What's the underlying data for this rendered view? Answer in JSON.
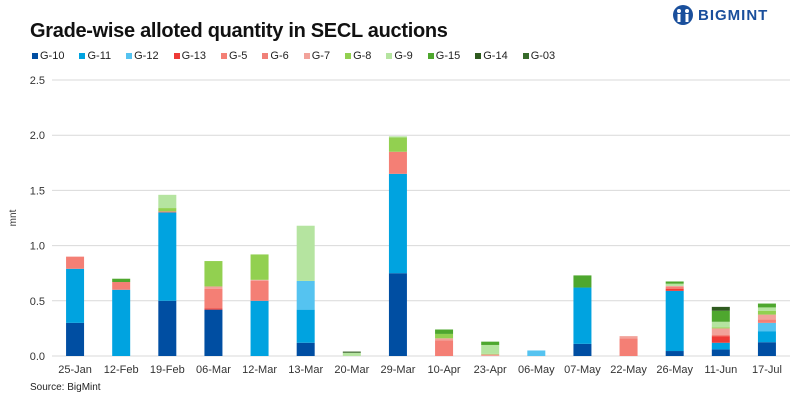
{
  "header": {
    "title": "Grade-wise alloted quantity in SECL auctions",
    "logo_text": "BIGMINT"
  },
  "footer": {
    "source": "Source: BigMint"
  },
  "chart_data": {
    "type": "bar",
    "stacked": true,
    "title": "Grade-wise alloted quantity in SECL auctions",
    "xlabel": "",
    "ylabel": "mnt",
    "ylim": [
      0,
      2.5
    ],
    "yticks": [
      "0.0",
      "0.5",
      "1.0",
      "1.5",
      "2.0",
      "2.5"
    ],
    "grid": true,
    "legend_position": "top",
    "categories": [
      "25-Jan",
      "12-Feb",
      "19-Feb",
      "06-Mar",
      "12-Mar",
      "13-Mar",
      "20-Mar",
      "29-Mar",
      "10-Apr",
      "23-Apr",
      "06-May",
      "07-May",
      "22-May",
      "26-May",
      "11-Jun",
      "17-Jul"
    ],
    "series": [
      {
        "name": "G-10",
        "color": "#004EA2",
        "values": [
          0.3,
          0,
          0.5,
          0.42,
          0,
          0.12,
          0,
          0.75,
          0,
          0,
          0,
          0.11,
          0,
          0.045,
          0.06,
          0.125
        ]
      },
      {
        "name": "G-11",
        "color": "#00A3E0",
        "values": [
          0.49,
          0.6,
          0.8,
          0,
          0.5,
          0.3,
          0,
          0.9,
          0,
          0,
          0,
          0.51,
          0,
          0.545,
          0.06,
          0.1
        ]
      },
      {
        "name": "G-12",
        "color": "#55C3F0",
        "values": [
          0,
          0,
          0,
          0,
          0,
          0.26,
          0,
          0,
          0,
          0,
          0.05,
          0,
          0,
          0,
          0,
          0.075
        ]
      },
      {
        "name": "G-13",
        "color": "#EE3A36",
        "values": [
          0,
          0,
          0,
          0.01,
          0,
          0,
          0,
          0,
          0,
          0,
          0,
          0,
          0,
          0.02,
          0.06,
          0
        ]
      },
      {
        "name": "G-5",
        "color": "#F47F75",
        "values": [
          0.11,
          0.07,
          0.01,
          0.18,
          0.18,
          0,
          0,
          0.2,
          0.14,
          0,
          0,
          0,
          0.16,
          0.015,
          0.01,
          0.03
        ]
      },
      {
        "name": "G-6",
        "color": "#F08078",
        "values": [
          0,
          0,
          0,
          0,
          0,
          0,
          0,
          0,
          0,
          0,
          0,
          0,
          0,
          0,
          0,
          0
        ]
      },
      {
        "name": "G-7",
        "color": "#F2A29A",
        "values": [
          0,
          0,
          0,
          0.02,
          0.01,
          0,
          0,
          0,
          0.02,
          0.015,
          0,
          0,
          0.02,
          0.01,
          0.06,
          0.045
        ]
      },
      {
        "name": "G-8",
        "color": "#92D050",
        "values": [
          0,
          0,
          0.03,
          0.23,
          0.23,
          0,
          0,
          0.13,
          0.04,
          0.005,
          0,
          0,
          0,
          0,
          0.01,
          0.035
        ]
      },
      {
        "name": "G-9",
        "color": "#B5E4A0",
        "values": [
          0,
          0,
          0.12,
          0,
          0,
          0.5,
          0.03,
          0.01,
          0,
          0.08,
          0,
          0,
          0,
          0.02,
          0.05,
          0.03
        ]
      },
      {
        "name": "G-15",
        "color": "#4EA72E",
        "values": [
          0,
          0.03,
          0,
          0,
          0,
          0,
          0,
          0,
          0.04,
          0.03,
          0,
          0.11,
          0,
          0.02,
          0.1,
          0.035
        ]
      },
      {
        "name": "G-14",
        "color": "#2E5A1F",
        "values": [
          0,
          0,
          0,
          0,
          0,
          0,
          0.01,
          0,
          0,
          0,
          0,
          0,
          0,
          0,
          0.035,
          0
        ]
      },
      {
        "name": "G-03",
        "color": "#376B2A",
        "values": [
          0,
          0,
          0,
          0,
          0,
          0,
          0,
          0,
          0,
          0,
          0,
          0,
          0,
          0,
          0,
          0
        ]
      }
    ]
  }
}
